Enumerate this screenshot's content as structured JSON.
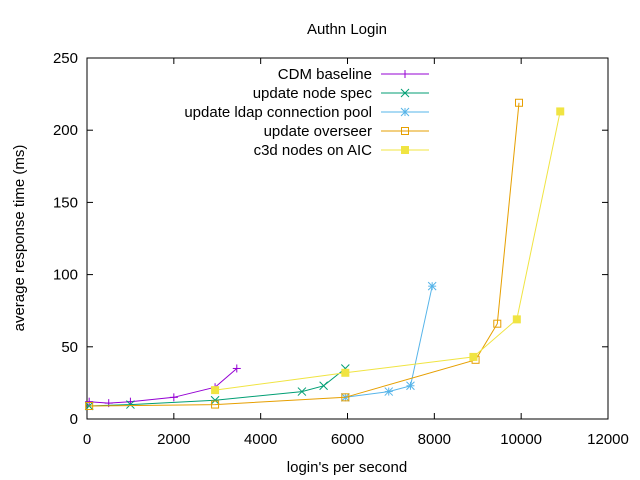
{
  "chart_data": {
    "type": "line",
    "title": "Authn Login",
    "xlabel": "login's per second",
    "ylabel": "average response time (ms)",
    "xlim": [
      0,
      12000
    ],
    "ylim": [
      0,
      250
    ],
    "xticks": [
      0,
      2000,
      4000,
      6000,
      8000,
      10000,
      12000
    ],
    "yticks": [
      0,
      50,
      100,
      150,
      200,
      250
    ],
    "grid": false,
    "legend_position": "top-right",
    "series": [
      {
        "name": "CDM baseline",
        "color": "#9400d3",
        "marker": "plus",
        "points": [
          [
            50,
            12
          ],
          [
            500,
            11
          ],
          [
            1000,
            12
          ],
          [
            2000,
            15
          ],
          [
            2950,
            22
          ],
          [
            3450,
            35
          ]
        ]
      },
      {
        "name": "update node spec",
        "color": "#009e73",
        "marker": "x",
        "points": [
          [
            50,
            9
          ],
          [
            1000,
            10
          ],
          [
            2950,
            13
          ],
          [
            4950,
            19
          ],
          [
            5450,
            23
          ],
          [
            5950,
            35
          ]
        ]
      },
      {
        "name": "update ldap connection pool",
        "color": "#56b4e9",
        "marker": "star",
        "points": [
          [
            5950,
            15
          ],
          [
            6950,
            19
          ],
          [
            7450,
            23
          ],
          [
            7950,
            92
          ]
        ]
      },
      {
        "name": "update overseer",
        "color": "#e69f00",
        "marker": "open-square",
        "points": [
          [
            50,
            9
          ],
          [
            2950,
            10
          ],
          [
            5950,
            15
          ],
          [
            8950,
            41
          ],
          [
            9450,
            66
          ],
          [
            9950,
            219
          ]
        ]
      },
      {
        "name": "c3d nodes on AIC",
        "color": "#f0e442",
        "marker": "filled-square",
        "points": [
          [
            2950,
            20
          ],
          [
            5950,
            32
          ],
          [
            8900,
            43
          ],
          [
            9900,
            69
          ],
          [
            10900,
            213
          ]
        ]
      }
    ]
  }
}
